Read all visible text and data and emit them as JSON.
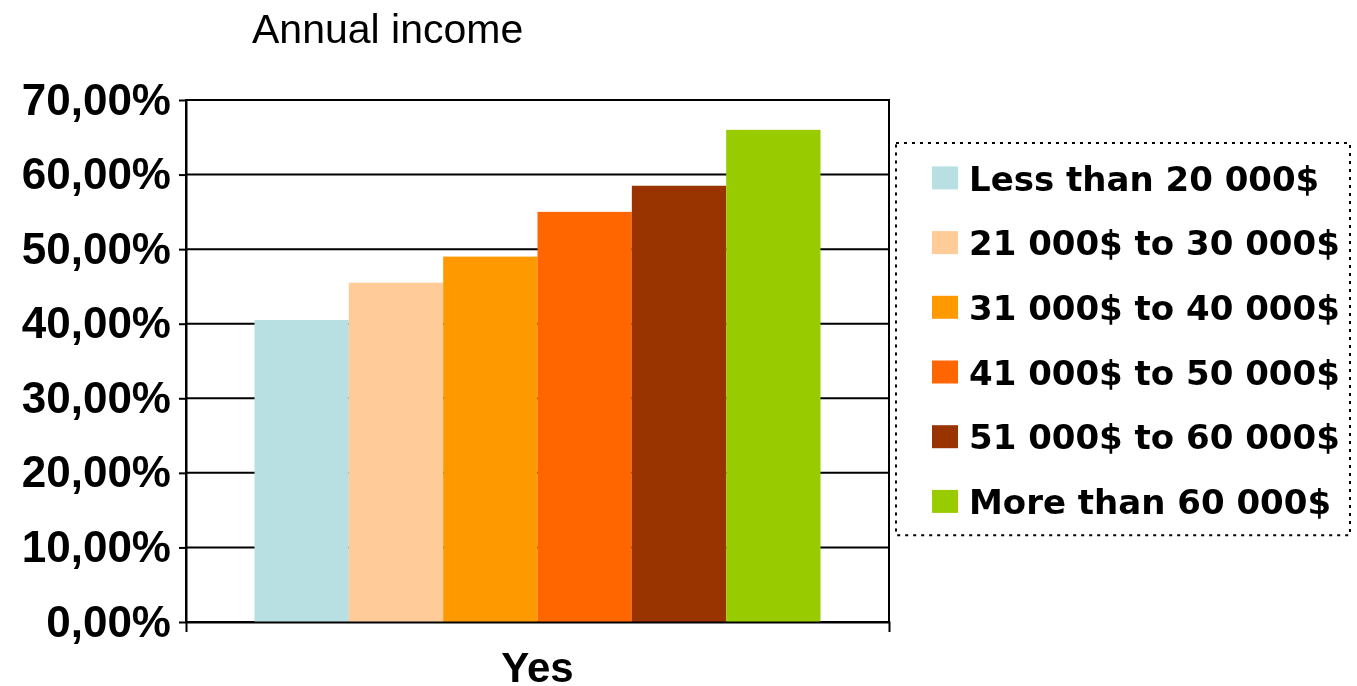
{
  "chart_data": {
    "type": "bar",
    "title": "Annual income",
    "xlabel": "Yes",
    "categories": [
      null,
      null,
      null,
      null,
      null,
      null
    ],
    "stacked": true,
    "series": [
      {
        "name": "Less than 20 000$",
        "color": "#b8dfe2",
        "values": [
          40.5,
          null,
          null,
          null,
          null,
          null
        ]
      },
      {
        "name": "21 000$ to 30 000$",
        "color": "#ffcc99",
        "values": [
          null,
          45.5,
          null,
          null,
          null,
          null
        ]
      },
      {
        "name": "31 000$ to 40 000$",
        "color": "#ff9900",
        "values": [
          null,
          null,
          49,
          null,
          null,
          null
        ]
      },
      {
        "name": "41 000$ to 50 000$",
        "color": "#ff6600",
        "values": [
          null,
          null,
          null,
          55,
          null,
          null
        ]
      },
      {
        "name": "51 000$ to 60 000$",
        "color": "#993300",
        "values": [
          null,
          null,
          null,
          null,
          58.5,
          null
        ]
      },
      {
        "name": "More than 60 000$",
        "color": "#99cc00",
        "values": [
          null,
          null,
          null,
          null,
          null,
          66
        ]
      }
    ],
    "ylim": [
      0,
      70
    ],
    "yticks": [
      {
        "value": 0,
        "label": "0,00%"
      },
      {
        "value": 10,
        "label": "10,00%"
      },
      {
        "value": 20,
        "label": "20,00%"
      },
      {
        "value": 30,
        "label": "30,00%"
      },
      {
        "value": 40,
        "label": "40,00%"
      },
      {
        "value": 50,
        "label": "50,00%"
      },
      {
        "value": 60,
        "label": "60,00%"
      },
      {
        "value": 70,
        "label": "70,00%"
      }
    ],
    "tick_labels": "y",
    "grid": "y",
    "legend": "right"
  }
}
